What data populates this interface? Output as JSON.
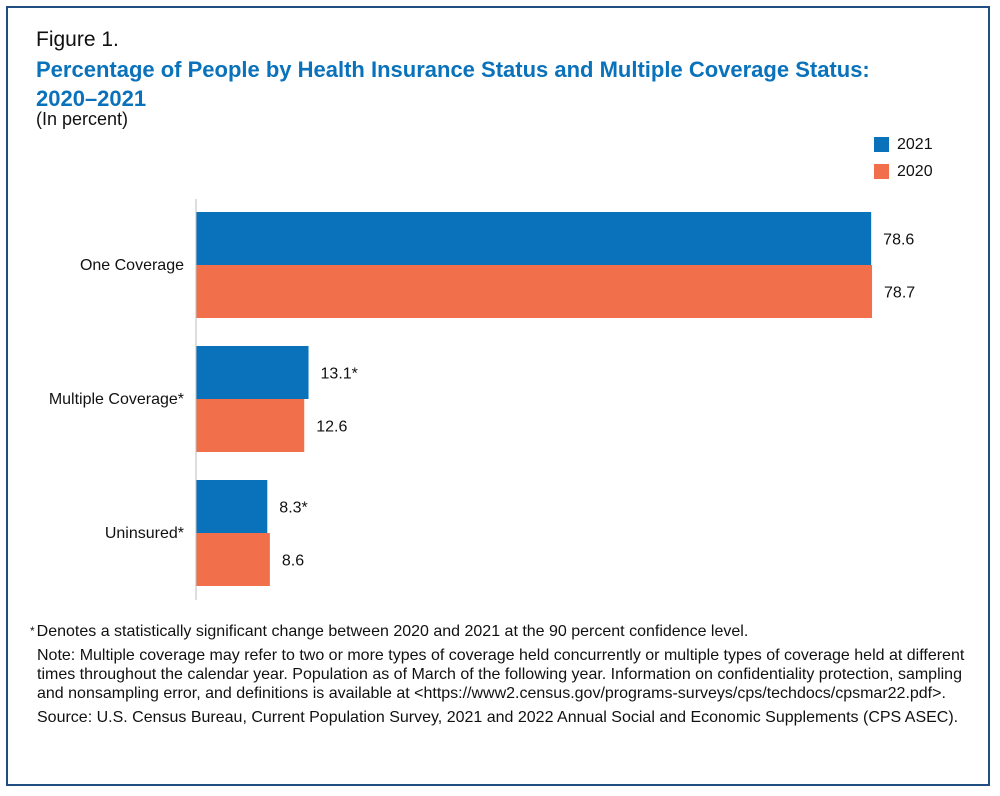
{
  "figure_label": "Figure 1.",
  "title": "Percentage of People by Health Insurance Status and Multiple Coverage Status: 2020–2021",
  "subtitle": "(In percent)",
  "legend": [
    {
      "label": "2021",
      "color": "#0a72ba"
    },
    {
      "label": "2020",
      "color": "#f26f4b"
    }
  ],
  "chart_data": {
    "type": "bar",
    "orientation": "horizontal",
    "categories": [
      "One Coverage",
      "Multiple Coverage*",
      "Uninsured*"
    ],
    "series": [
      {
        "name": "2021",
        "color": "#0a72ba",
        "values": [
          78.6,
          13.1,
          8.3
        ],
        "labels": [
          "78.6",
          "13.1*",
          "8.3*"
        ]
      },
      {
        "name": "2020",
        "color": "#f26f4b",
        "values": [
          78.7,
          12.6,
          8.6
        ],
        "labels": [
          "78.7",
          "12.6",
          "8.6"
        ]
      }
    ],
    "xlim": [
      0,
      100
    ],
    "grid": false,
    "legend_position": "top-right"
  },
  "footnote": {
    "symbol": "*",
    "text": "Denotes a statistically significant change between 2020 and 2021 at the 90 percent confidence level."
  },
  "note": "Note: Multiple coverage may refer to two or more types of coverage held concurrently or multiple types of coverage held at different times throughout the calendar year. Population as of March of the following year. Information on confidentiality protection, sampling and nonsampling error, and definitions is available at <https://www2.census.gov/programs-surveys/cps/techdocs/cpsmar22.pdf>.",
  "source": "Source:  U.S. Census Bureau, Current Population Survey, 2021 and 2022 Annual Social and Economic Supplements (CPS ASEC)."
}
